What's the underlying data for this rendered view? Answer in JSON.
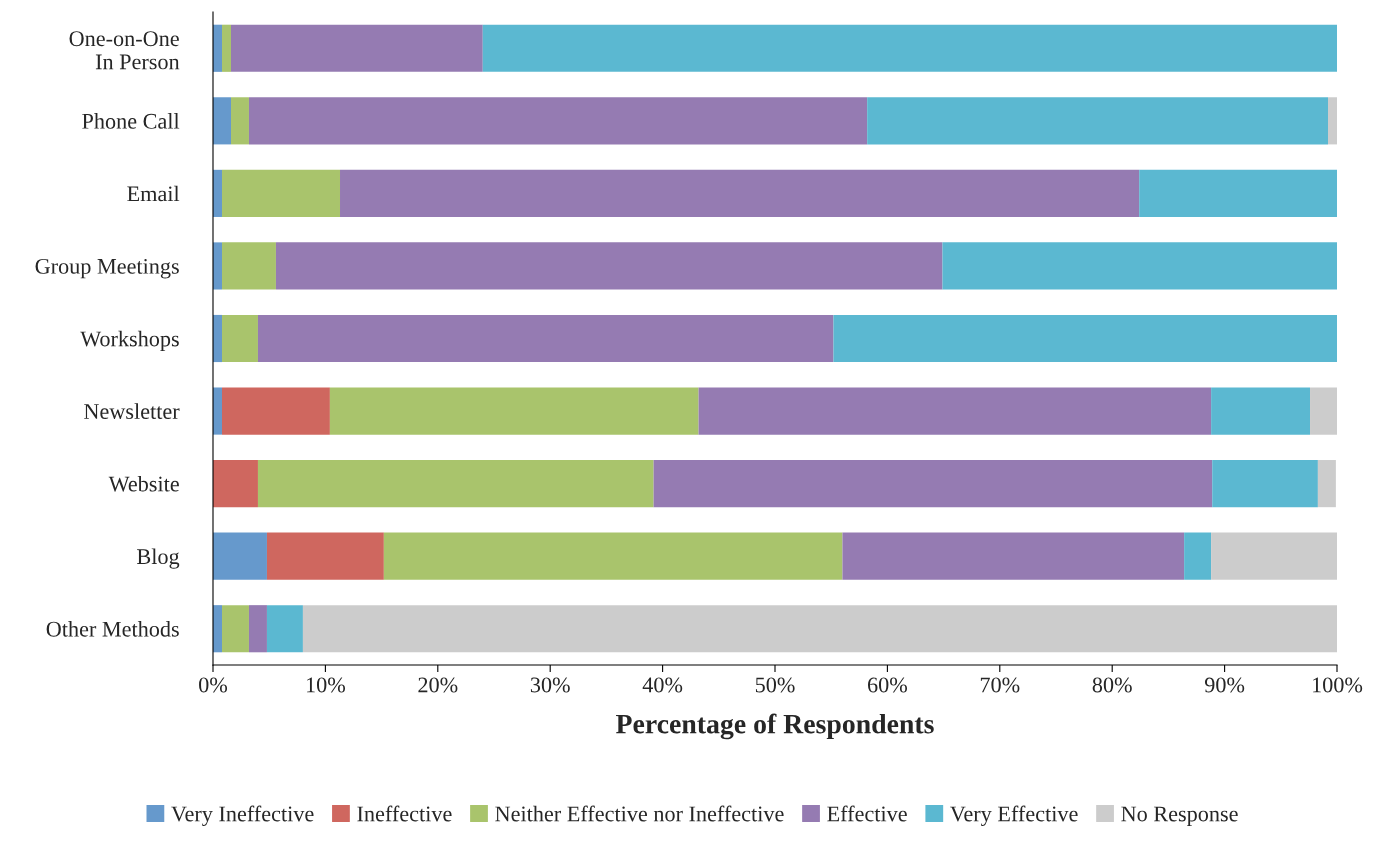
{
  "chart_data": {
    "type": "bar",
    "orientation": "horizontal",
    "stacked": true,
    "xlabel": "Percentage of Respondents",
    "categories": [
      "One-on-One\nIn Person",
      "Phone Call",
      "Email",
      "Group Meetings",
      "Workshops",
      "Newsletter",
      "Website",
      "Blog",
      "Other Methods"
    ],
    "series": [
      {
        "name": "Very Ineffective",
        "color": "#6699cc",
        "values": [
          0.8,
          1.6,
          0.8,
          0.8,
          0.8,
          0.8,
          0,
          4.8,
          0.8
        ]
      },
      {
        "name": "Ineffective",
        "color": "#cf675f",
        "values": [
          0,
          0,
          0,
          0,
          0,
          9.6,
          4.0,
          10.4,
          0
        ]
      },
      {
        "name": "Neither Effective nor Ineffective",
        "color": "#a9c46c",
        "values": [
          0.8,
          1.6,
          10.5,
          4.8,
          3.2,
          32.8,
          35.2,
          40.8,
          2.4
        ]
      },
      {
        "name": "Effective",
        "color": "#957bb2",
        "values": [
          22.4,
          55.0,
          71.1,
          59.3,
          51.2,
          45.6,
          49.7,
          30.4,
          1.6
        ]
      },
      {
        "name": "Very Effective",
        "color": "#5bb8d1",
        "values": [
          76.0,
          41.0,
          17.6,
          35.1,
          44.8,
          8.8,
          9.4,
          2.4,
          3.2
        ]
      },
      {
        "name": "No Response",
        "color": "#cccccc",
        "values": [
          0,
          0.8,
          0,
          0,
          0,
          2.4,
          1.6,
          11.2,
          92.0
        ]
      }
    ],
    "xlim": [
      0,
      100
    ],
    "xticks": [
      {
        "value": 0,
        "label": "0%"
      },
      {
        "value": 10,
        "label": "10%"
      },
      {
        "value": 20,
        "label": "20%"
      },
      {
        "value": 30,
        "label": "30%"
      },
      {
        "value": 40,
        "label": "40%"
      },
      {
        "value": 50,
        "label": "50%"
      },
      {
        "value": 60,
        "label": "60%"
      },
      {
        "value": 70,
        "label": "70%"
      },
      {
        "value": 80,
        "label": "80%"
      },
      {
        "value": 90,
        "label": "90%"
      },
      {
        "value": 100,
        "label": "100%"
      }
    ],
    "grid": false,
    "legend": "bottom"
  }
}
